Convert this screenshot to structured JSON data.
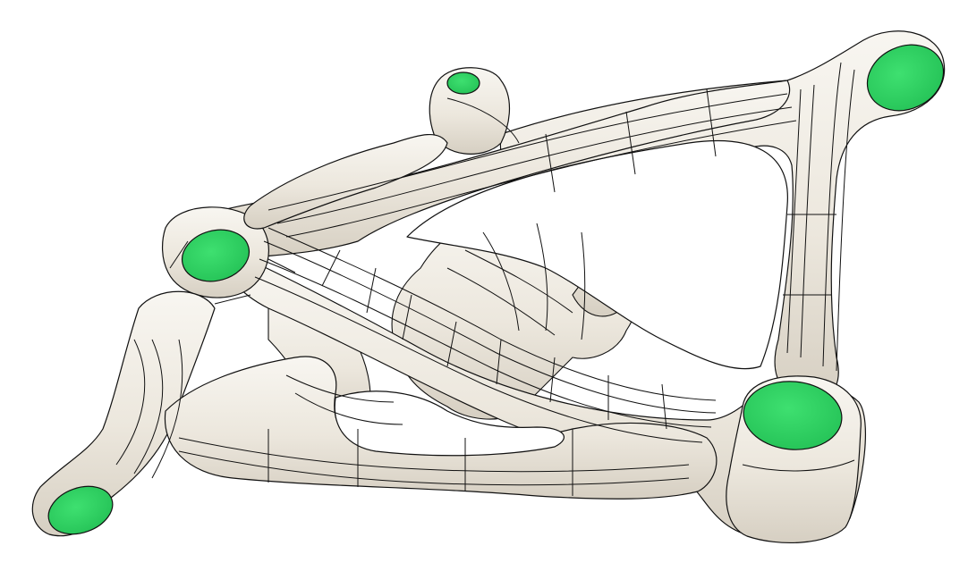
{
  "scene": {
    "subject": "bracket-mesh",
    "colors": {
      "background": "#ffffff",
      "surface": "#ece7dd",
      "surface_shade": "#d9d2c5",
      "surface_highlight": "#f8f6f1",
      "edge": "#111111",
      "face_green": "#2fd660",
      "face_green_dark": "#1fa447"
    }
  }
}
